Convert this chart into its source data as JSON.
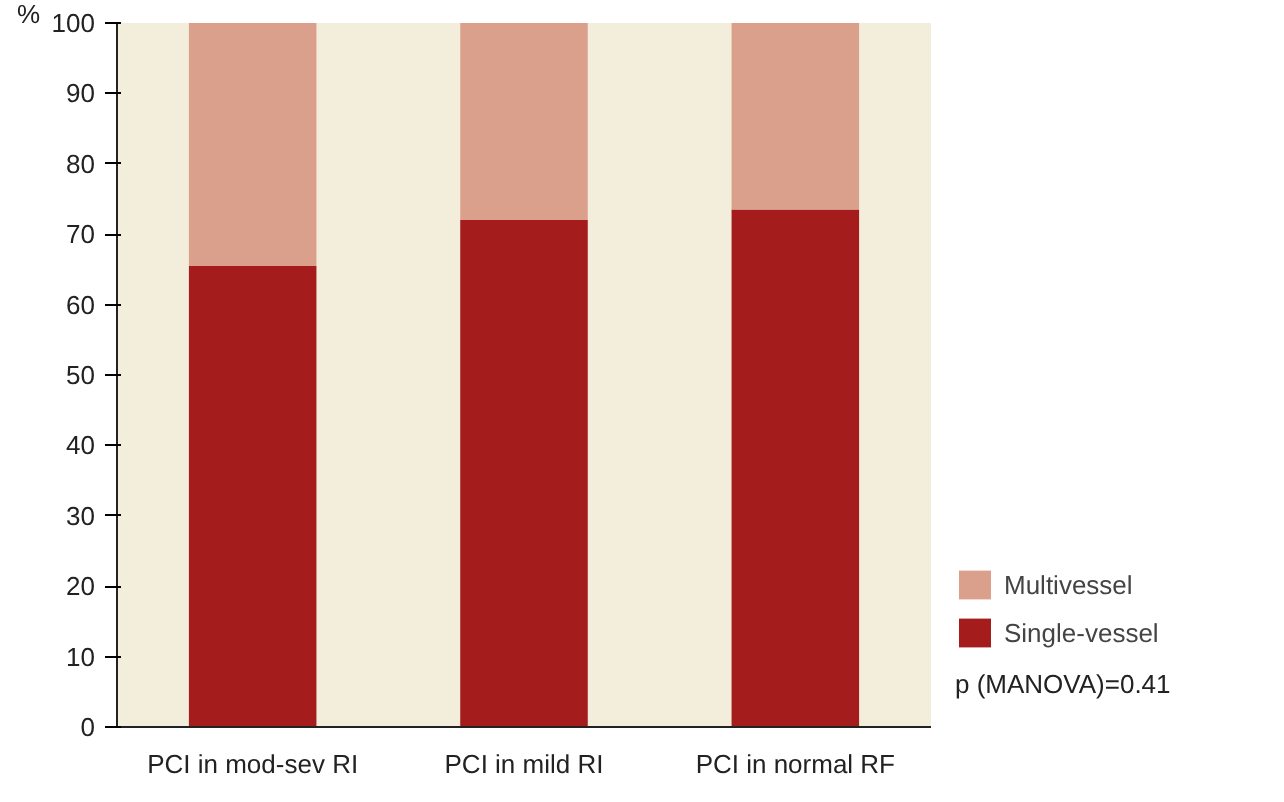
{
  "chart_data": {
    "type": "bar",
    "stacked": true,
    "ylabel": "%",
    "categories": [
      "PCI in mod-sev RI",
      "PCI in mild RI",
      "PCI in normal RF"
    ],
    "series": [
      {
        "name": "Single-vessel",
        "color": "#a51c1c",
        "values": [
          65.5,
          72,
          73.5
        ]
      },
      {
        "name": "Multivessel",
        "color": "#dba08c",
        "values": [
          34.5,
          28,
          26.5
        ]
      }
    ],
    "ylim": [
      0,
      100
    ],
    "yticks": [
      0,
      10,
      20,
      30,
      40,
      50,
      60,
      70,
      80,
      90,
      100
    ],
    "grid": false,
    "legend": "bottom right",
    "annotations": [
      "p (MANOVA)=0.41"
    ]
  }
}
